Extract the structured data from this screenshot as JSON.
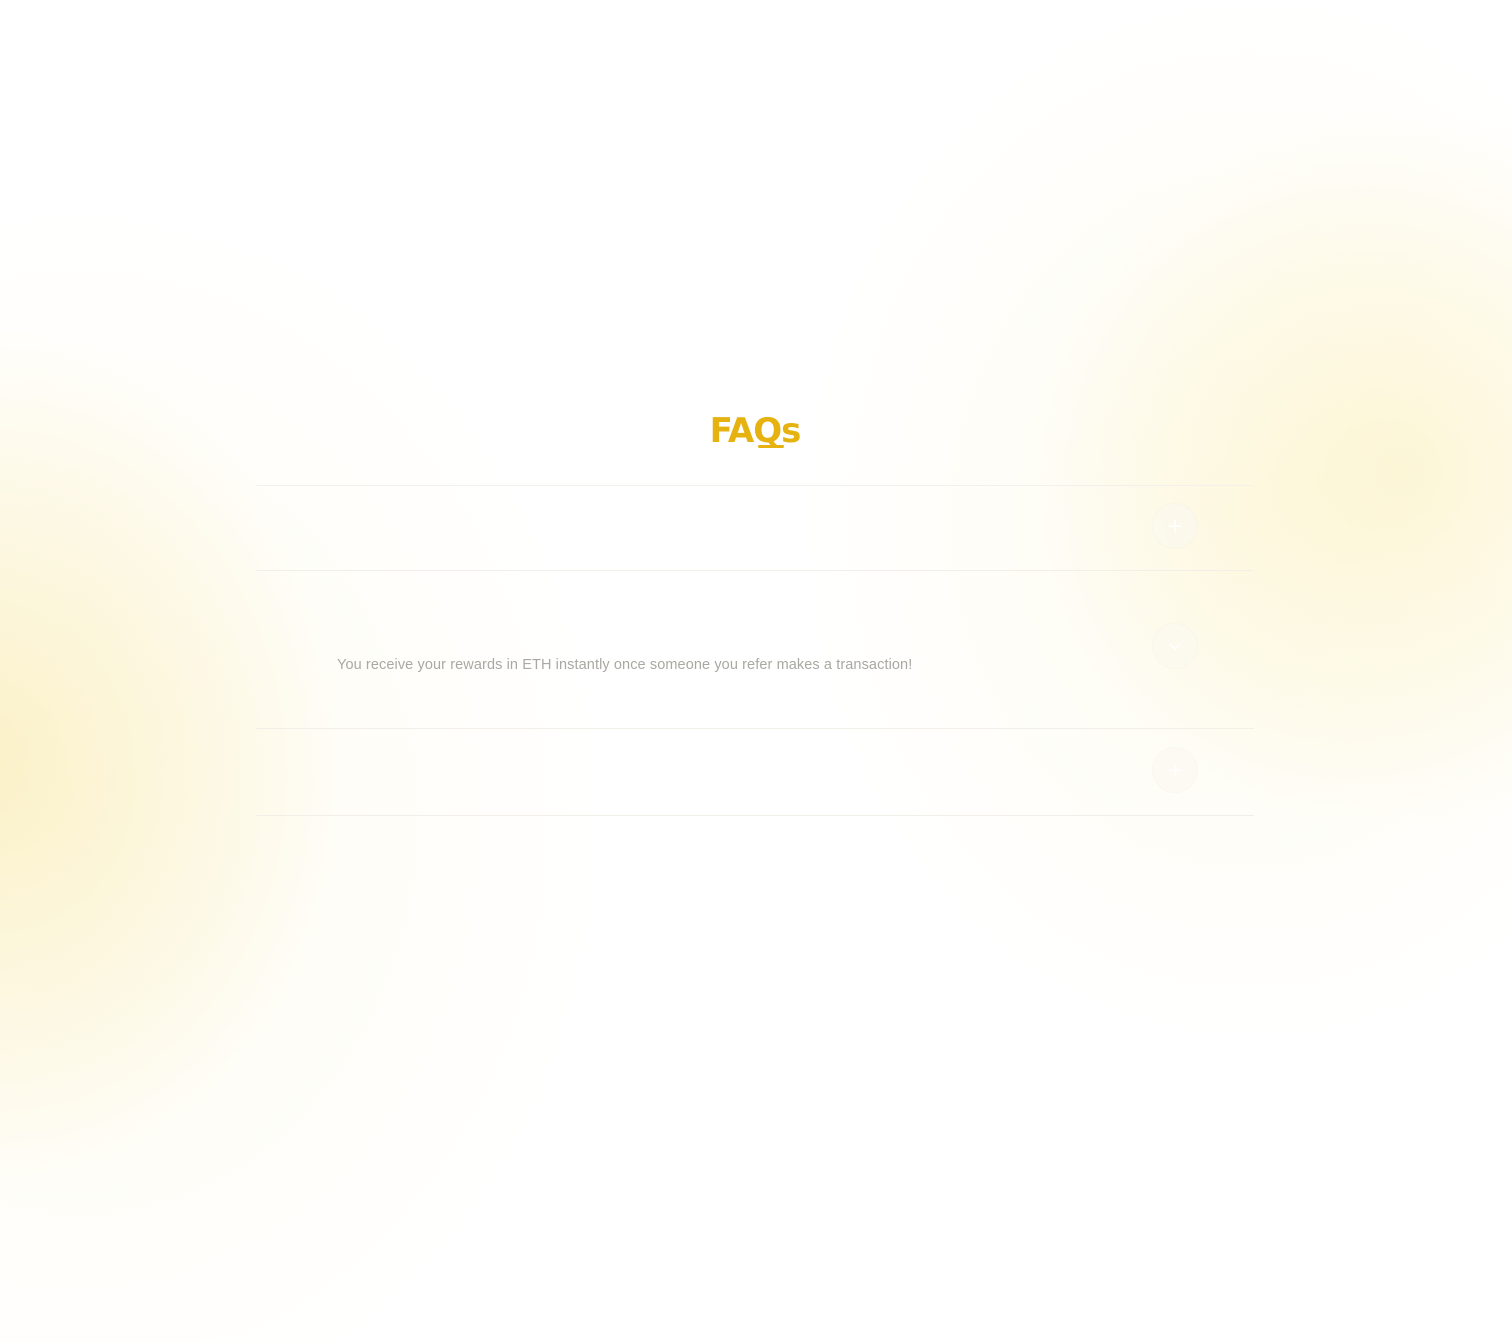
{
  "faq": {
    "title": "FAQs",
    "items": [
      {
        "question": "",
        "answer": "",
        "state": "collapsed",
        "toggle_icon": "plus-icon"
      },
      {
        "question": "",
        "answer": "You receive your rewards in ETH instantly once someone you refer makes a transaction!",
        "state": "expanded",
        "toggle_icon": "chevron-down-icon"
      },
      {
        "question": "",
        "answer": "",
        "state": "collapsed",
        "toggle_icon": "plus-icon"
      }
    ]
  },
  "colors": {
    "accent": "#e6b20f",
    "answer_text": "#aaa8a2",
    "background": "#ffffff",
    "glow": "#f8e8a5"
  }
}
